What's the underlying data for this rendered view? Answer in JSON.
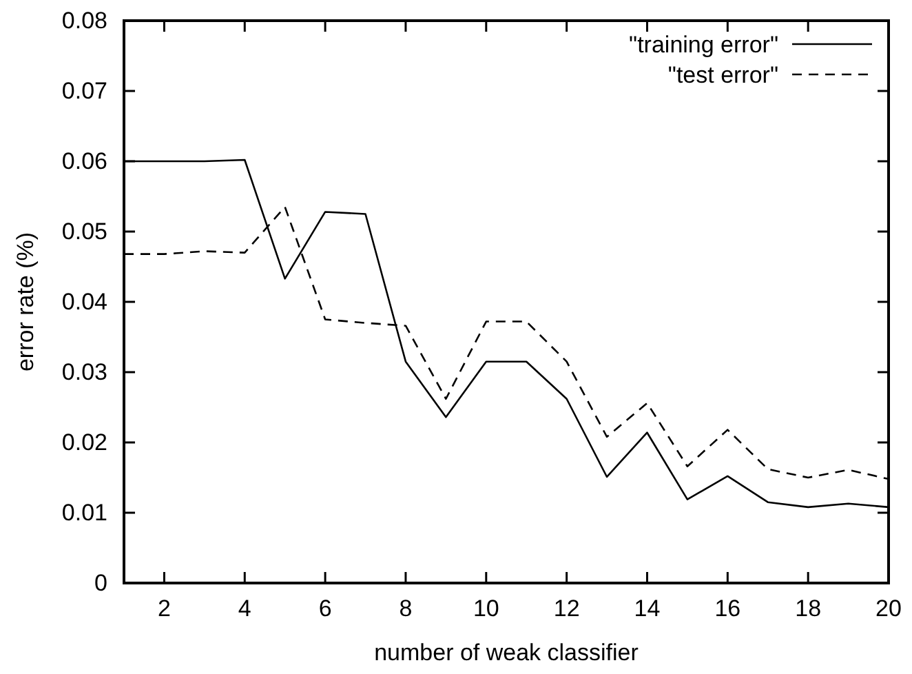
{
  "chart_data": {
    "type": "line",
    "xlabel": "number of weak classifier",
    "ylabel": "error rate (%)",
    "x": [
      1,
      2,
      3,
      4,
      5,
      6,
      7,
      8,
      9,
      10,
      11,
      12,
      13,
      14,
      15,
      16,
      17,
      18,
      19,
      20
    ],
    "xlim": [
      1,
      20
    ],
    "xticks": [
      2,
      4,
      6,
      8,
      10,
      12,
      14,
      16,
      18,
      20
    ],
    "ylim": [
      0,
      0.08
    ],
    "yticks": [
      0,
      0.01,
      0.02,
      0.03,
      0.04,
      0.05,
      0.06,
      0.07,
      0.08
    ],
    "grid": false,
    "legend": "top right",
    "marker": "none",
    "series": [
      {
        "name": "\"training error\"",
        "color": "#000000",
        "line_style": "solid",
        "values": [
          0.06,
          0.06,
          0.06,
          0.0602,
          0.0433,
          0.0528,
          0.0525,
          0.0315,
          0.0236,
          0.0315,
          0.0315,
          0.0262,
          0.0151,
          0.0214,
          0.0119,
          0.0152,
          0.0115,
          0.0108,
          0.0113,
          0.0108
        ]
      },
      {
        "name": "\"test error\"",
        "color": "#000000",
        "line_style": "dashed",
        "values": [
          0.0468,
          0.0468,
          0.0472,
          0.047,
          0.0535,
          0.0375,
          0.037,
          0.0366,
          0.0262,
          0.0372,
          0.0372,
          0.0315,
          0.0208,
          0.0256,
          0.0166,
          0.0218,
          0.0162,
          0.015,
          0.0161,
          0.0148
        ]
      }
    ]
  }
}
